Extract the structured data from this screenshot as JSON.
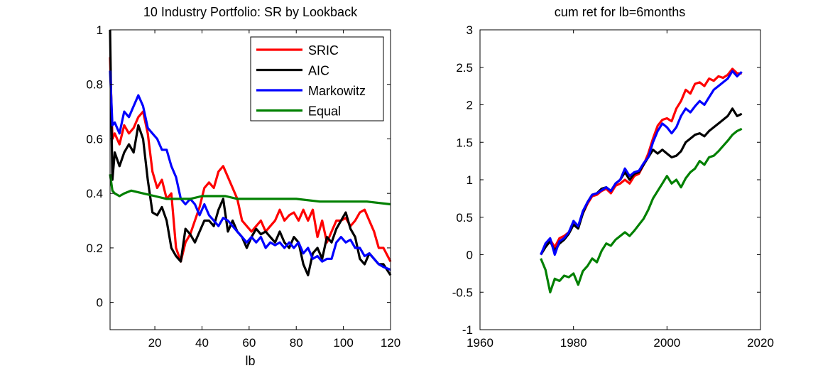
{
  "chart_data": [
    {
      "type": "line",
      "title": "10 Industry Portfolio: SR by Lookback",
      "xlabel": "lb",
      "ylabel": "",
      "xlim": [
        1,
        120
      ],
      "ylim": [
        -0.1,
        1
      ],
      "xticks": [
        20,
        40,
        60,
        80,
        100,
        120
      ],
      "yticks": [
        0,
        0.2,
        0.4,
        0.6,
        0.8,
        1
      ],
      "legend": "top-right",
      "grid": false,
      "series": [
        {
          "name": "SRIC",
          "color": "#ff0000",
          "x": [
            1,
            2,
            3,
            5,
            7,
            9,
            11,
            13,
            15,
            17,
            19,
            21,
            23,
            25,
            27,
            29,
            31,
            33,
            35,
            37,
            39,
            41,
            43,
            45,
            47,
            49,
            51,
            53,
            55,
            57,
            59,
            61,
            63,
            65,
            67,
            69,
            71,
            73,
            75,
            77,
            79,
            81,
            83,
            85,
            87,
            89,
            91,
            93,
            95,
            97,
            99,
            101,
            103,
            105,
            107,
            109,
            111,
            113,
            115,
            117,
            120
          ],
          "values": [
            0.9,
            0.6,
            0.62,
            0.58,
            0.65,
            0.62,
            0.64,
            0.68,
            0.7,
            0.62,
            0.48,
            0.42,
            0.45,
            0.38,
            0.4,
            0.2,
            0.15,
            0.22,
            0.25,
            0.3,
            0.35,
            0.42,
            0.44,
            0.42,
            0.48,
            0.5,
            0.46,
            0.42,
            0.38,
            0.3,
            0.28,
            0.26,
            0.28,
            0.3,
            0.26,
            0.28,
            0.3,
            0.34,
            0.3,
            0.32,
            0.33,
            0.3,
            0.34,
            0.3,
            0.34,
            0.24,
            0.3,
            0.22,
            0.26,
            0.3,
            0.3,
            0.31,
            0.28,
            0.3,
            0.33,
            0.34,
            0.3,
            0.26,
            0.2,
            0.2,
            0.15
          ]
        },
        {
          "name": "AIC",
          "color": "#000000",
          "x": [
            1,
            2,
            3,
            5,
            7,
            9,
            11,
            13,
            15,
            17,
            19,
            21,
            23,
            25,
            27,
            29,
            31,
            33,
            35,
            37,
            39,
            41,
            43,
            45,
            47,
            49,
            51,
            53,
            55,
            57,
            59,
            61,
            63,
            65,
            67,
            69,
            71,
            73,
            75,
            77,
            79,
            81,
            83,
            85,
            87,
            89,
            91,
            93,
            95,
            97,
            99,
            101,
            103,
            105,
            107,
            109,
            111,
            113,
            115,
            117,
            120
          ],
          "values": [
            1.0,
            0.45,
            0.55,
            0.5,
            0.55,
            0.58,
            0.55,
            0.65,
            0.6,
            0.45,
            0.33,
            0.32,
            0.35,
            0.3,
            0.2,
            0.17,
            0.15,
            0.27,
            0.25,
            0.22,
            0.26,
            0.3,
            0.3,
            0.28,
            0.34,
            0.38,
            0.26,
            0.3,
            0.26,
            0.24,
            0.2,
            0.24,
            0.27,
            0.25,
            0.26,
            0.24,
            0.22,
            0.26,
            0.22,
            0.2,
            0.24,
            0.22,
            0.14,
            0.1,
            0.18,
            0.2,
            0.16,
            0.24,
            0.22,
            0.27,
            0.3,
            0.33,
            0.27,
            0.24,
            0.16,
            0.14,
            0.18,
            0.16,
            0.14,
            0.14,
            0.1
          ]
        },
        {
          "name": "Markowitz",
          "color": "#0000ff",
          "x": [
            1,
            2,
            3,
            5,
            7,
            9,
            11,
            13,
            15,
            17,
            19,
            21,
            23,
            25,
            27,
            29,
            31,
            33,
            35,
            37,
            39,
            41,
            43,
            45,
            47,
            49,
            51,
            53,
            55,
            57,
            59,
            61,
            63,
            65,
            67,
            69,
            71,
            73,
            75,
            77,
            79,
            81,
            83,
            85,
            87,
            89,
            91,
            93,
            95,
            97,
            99,
            101,
            103,
            105,
            107,
            109,
            111,
            113,
            115,
            117,
            120
          ],
          "values": [
            0.85,
            0.65,
            0.66,
            0.62,
            0.7,
            0.68,
            0.72,
            0.76,
            0.72,
            0.64,
            0.62,
            0.6,
            0.56,
            0.56,
            0.5,
            0.46,
            0.38,
            0.36,
            0.38,
            0.36,
            0.32,
            0.36,
            0.32,
            0.3,
            0.28,
            0.31,
            0.3,
            0.28,
            0.26,
            0.24,
            0.22,
            0.24,
            0.22,
            0.24,
            0.2,
            0.22,
            0.21,
            0.22,
            0.2,
            0.22,
            0.2,
            0.22,
            0.18,
            0.2,
            0.16,
            0.17,
            0.15,
            0.16,
            0.16,
            0.22,
            0.24,
            0.22,
            0.23,
            0.2,
            0.2,
            0.17,
            0.18,
            0.16,
            0.14,
            0.13,
            0.12
          ]
        },
        {
          "name": "Equal",
          "color": "#008000",
          "x": [
            1,
            2,
            3,
            5,
            7,
            10,
            15,
            20,
            25,
            30,
            35,
            40,
            45,
            50,
            55,
            60,
            70,
            80,
            90,
            100,
            110,
            120
          ],
          "values": [
            0.47,
            0.41,
            0.4,
            0.39,
            0.4,
            0.41,
            0.4,
            0.39,
            0.38,
            0.38,
            0.38,
            0.39,
            0.39,
            0.39,
            0.38,
            0.38,
            0.38,
            0.38,
            0.37,
            0.37,
            0.37,
            0.36
          ]
        }
      ]
    },
    {
      "type": "line",
      "title": "cum ret for lb=6months",
      "xlabel": "",
      "ylabel": "",
      "xlim": [
        1960,
        2020
      ],
      "ylim": [
        -1,
        3
      ],
      "xticks": [
        1960,
        1980,
        2000,
        2020
      ],
      "yticks": [
        -1,
        -0.5,
        0,
        0.5,
        1,
        1.5,
        2,
        2.5,
        3
      ],
      "grid": false,
      "series": [
        {
          "name": "SRIC",
          "color": "#ff0000",
          "x": [
            1973,
            1974,
            1975,
            1976,
            1977,
            1978,
            1979,
            1980,
            1981,
            1982,
            1983,
            1984,
            1985,
            1986,
            1987,
            1988,
            1989,
            1990,
            1991,
            1992,
            1993,
            1994,
            1995,
            1996,
            1997,
            1998,
            1999,
            2000,
            2001,
            2002,
            2003,
            2004,
            2005,
            2006,
            2007,
            2008,
            2009,
            2010,
            2011,
            2012,
            2013,
            2014,
            2015,
            2016
          ],
          "values": [
            0.0,
            0.12,
            0.2,
            0.1,
            0.22,
            0.25,
            0.3,
            0.42,
            0.38,
            0.55,
            0.68,
            0.78,
            0.8,
            0.85,
            0.88,
            0.82,
            0.92,
            0.95,
            1.0,
            0.95,
            1.05,
            1.08,
            1.2,
            1.35,
            1.55,
            1.72,
            1.8,
            1.82,
            1.78,
            1.95,
            2.05,
            2.2,
            2.15,
            2.28,
            2.3,
            2.25,
            2.35,
            2.32,
            2.38,
            2.36,
            2.4,
            2.48,
            2.42,
            2.42
          ]
        },
        {
          "name": "AIC",
          "color": "#000000",
          "x": [
            1973,
            1974,
            1975,
            1976,
            1977,
            1978,
            1979,
            1980,
            1981,
            1982,
            1983,
            1984,
            1985,
            1986,
            1987,
            1988,
            1989,
            1990,
            1991,
            1992,
            1993,
            1994,
            1995,
            1996,
            1997,
            1998,
            1999,
            2000,
            2001,
            2002,
            2003,
            2004,
            2005,
            2006,
            2007,
            2008,
            2009,
            2010,
            2011,
            2012,
            2013,
            2014,
            2015,
            2016
          ],
          "values": [
            0.0,
            0.1,
            0.18,
            0.05,
            0.15,
            0.2,
            0.28,
            0.4,
            0.35,
            0.55,
            0.7,
            0.8,
            0.82,
            0.88,
            0.9,
            0.85,
            0.95,
            1.0,
            1.1,
            1.0,
            1.08,
            1.1,
            1.2,
            1.3,
            1.4,
            1.35,
            1.4,
            1.35,
            1.3,
            1.32,
            1.38,
            1.5,
            1.55,
            1.6,
            1.62,
            1.58,
            1.65,
            1.7,
            1.75,
            1.8,
            1.85,
            1.95,
            1.85,
            1.88
          ]
        },
        {
          "name": "Markowitz",
          "color": "#0000ff",
          "x": [
            1973,
            1974,
            1975,
            1976,
            1977,
            1978,
            1979,
            1980,
            1981,
            1982,
            1983,
            1984,
            1985,
            1986,
            1987,
            1988,
            1989,
            1990,
            1991,
            1992,
            1993,
            1994,
            1995,
            1996,
            1997,
            1998,
            1999,
            2000,
            2001,
            2002,
            2003,
            2004,
            2005,
            2006,
            2007,
            2008,
            2009,
            2010,
            2011,
            2012,
            2013,
            2014,
            2015,
            2016
          ],
          "values": [
            0.0,
            0.15,
            0.22,
            0.0,
            0.18,
            0.22,
            0.3,
            0.45,
            0.38,
            0.58,
            0.7,
            0.8,
            0.82,
            0.86,
            0.9,
            0.85,
            0.95,
            1.0,
            1.15,
            1.05,
            1.1,
            1.12,
            1.22,
            1.3,
            1.5,
            1.65,
            1.75,
            1.7,
            1.62,
            1.7,
            1.85,
            1.95,
            1.9,
            1.98,
            2.05,
            2.0,
            2.1,
            2.2,
            2.25,
            2.3,
            2.35,
            2.45,
            2.38,
            2.44
          ]
        },
        {
          "name": "Equal",
          "color": "#008000",
          "x": [
            1973,
            1974,
            1975,
            1976,
            1977,
            1978,
            1979,
            1980,
            1981,
            1982,
            1983,
            1984,
            1985,
            1986,
            1987,
            1988,
            1989,
            1990,
            1991,
            1992,
            1993,
            1994,
            1995,
            1996,
            1997,
            1998,
            1999,
            2000,
            2001,
            2002,
            2003,
            2004,
            2005,
            2006,
            2007,
            2008,
            2009,
            2010,
            2011,
            2012,
            2013,
            2014,
            2015,
            2016
          ],
          "values": [
            -0.05,
            -0.2,
            -0.5,
            -0.32,
            -0.35,
            -0.28,
            -0.3,
            -0.25,
            -0.4,
            -0.22,
            -0.15,
            -0.05,
            -0.1,
            0.05,
            0.15,
            0.12,
            0.2,
            0.25,
            0.3,
            0.25,
            0.32,
            0.4,
            0.48,
            0.6,
            0.75,
            0.85,
            0.95,
            1.05,
            0.95,
            1.0,
            0.9,
            1.02,
            1.1,
            1.15,
            1.25,
            1.2,
            1.3,
            1.32,
            1.38,
            1.45,
            1.52,
            1.6,
            1.65,
            1.68
          ]
        }
      ]
    }
  ]
}
